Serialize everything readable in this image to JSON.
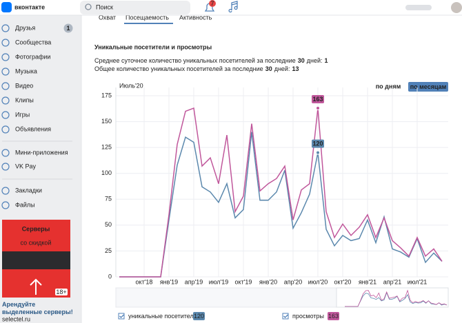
{
  "header": {
    "logo": "вконтакте",
    "search_placeholder": "Поиск",
    "notifications": "7"
  },
  "sidebar": {
    "items": [
      {
        "label": "Друзья",
        "badge": "1"
      },
      {
        "label": "Сообщества"
      },
      {
        "label": "Фотографии"
      },
      {
        "label": "Музыка"
      },
      {
        "label": "Видео"
      },
      {
        "label": "Клипы"
      },
      {
        "label": "Игры"
      },
      {
        "label": "Объявления"
      },
      {
        "label": "Мини-приложения"
      },
      {
        "label": "VK Pay"
      },
      {
        "label": "Закладки"
      },
      {
        "label": "Файлы"
      }
    ],
    "ad": {
      "title": "Серверы",
      "subtitle": "со скидкой",
      "age": "18+",
      "text": "Арендуйте выделенные серверы!",
      "domain": "selectel.ru"
    }
  },
  "tabs": [
    "Охват",
    "Посещаемость",
    "Активность"
  ],
  "section": {
    "title": "Уникальные посетители и просмотры",
    "stats": [
      {
        "prefix": "Среднее суточное количество уникальных посетителей за последние",
        "days": "30",
        "suffix": "дней:",
        "value": "1"
      },
      {
        "prefix": "Общее количество уникальных посетителей за последние",
        "days": "30",
        "suffix": "дней:",
        "value": "13"
      }
    ]
  },
  "buttons": [
    "по дням",
    "по месяцам"
  ],
  "chart_data": {
    "type": "line",
    "hover_label": "Июль'20",
    "categories": [
      null,
      null,
      null,
      "окт'18",
      null,
      null,
      "янв'19",
      null,
      null,
      "апр'19",
      null,
      null,
      "июл'19",
      null,
      null,
      "окт'19",
      null,
      null,
      "янв'20",
      null,
      null,
      "апр'20",
      null,
      null,
      "июл'20",
      null,
      null,
      "окт'20",
      null,
      null,
      "янв'21",
      null,
      null,
      "апр'21",
      null,
      null,
      "июл'21",
      null,
      null,
      null
    ],
    "series": [
      {
        "name": "уникальные посетители",
        "color": "#5b88ad",
        "values": [
          0,
          0,
          0,
          0,
          0,
          0,
          55,
          108,
          135,
          130,
          87,
          82,
          72,
          90,
          57,
          65,
          140,
          74,
          74,
          82,
          103,
          47,
          62,
          80,
          120,
          46,
          30,
          40,
          35,
          37,
          55,
          33,
          58,
          27,
          24,
          19,
          37,
          14,
          23,
          15
        ],
        "value_labels": [
          null,
          null,
          null,
          null,
          null,
          null,
          null,
          null,
          null,
          null,
          null,
          null,
          null,
          null,
          null,
          null,
          null,
          null,
          null,
          null,
          null,
          null,
          null,
          null,
          "120",
          null,
          null,
          null,
          null,
          null,
          null,
          null,
          null,
          null,
          null,
          null,
          null,
          null,
          null,
          null
        ]
      },
      {
        "name": "просмотры",
        "color": "#c0579b",
        "values": [
          0,
          0,
          0,
          0,
          0,
          0,
          60,
          128,
          160,
          163,
          107,
          115,
          90,
          137,
          63,
          78,
          148,
          83,
          90,
          95,
          107,
          55,
          84,
          90,
          163,
          63,
          38,
          51,
          40,
          48,
          60,
          38,
          57,
          35,
          28,
          20,
          38,
          20,
          27,
          15
        ],
        "value_labels": [
          null,
          null,
          null,
          null,
          null,
          null,
          null,
          null,
          null,
          null,
          null,
          null,
          null,
          null,
          null,
          null,
          null,
          null,
          null,
          null,
          null,
          null,
          null,
          null,
          "163",
          null,
          null,
          null,
          null,
          null,
          null,
          null,
          null,
          null,
          null,
          null,
          null,
          null,
          null,
          null
        ]
      }
    ],
    "ylim": [
      0,
      175
    ],
    "yticks": [
      0,
      25,
      50,
      75,
      100,
      125,
      150,
      175
    ],
    "grid": true
  }
}
